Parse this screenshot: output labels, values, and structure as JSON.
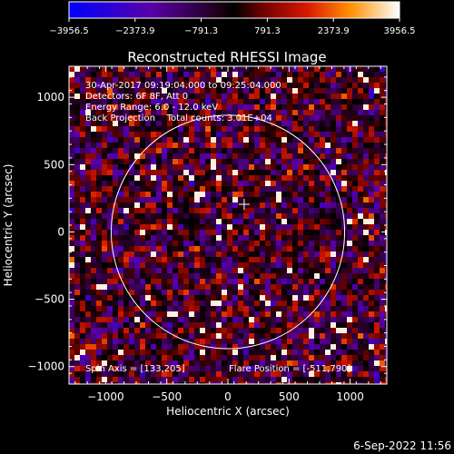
{
  "chart_data": {
    "type": "heatmap",
    "title": "Reconstructed RHESSI Image",
    "xlabel": "Heliocentric X (arcsec)",
    "ylabel": "Heliocentric Y (arcsec)",
    "xlim": [
      -1300,
      1300
    ],
    "ylim": [
      -1130,
      1230
    ],
    "x_ticks": [
      -1000,
      -500,
      0,
      500,
      1000
    ],
    "y_ticks": [
      -1000,
      -500,
      0,
      500,
      1000
    ],
    "colorbar": {
      "range": [
        -3956.5,
        3956.5
      ],
      "tick_values": [
        -3956.5,
        -2373.9,
        -791.3,
        791.3,
        2373.9,
        3956.5
      ],
      "tick_labels": [
        "−3956.5",
        "−2373.9",
        "−791.3",
        "791.3",
        "2373.9",
        "3956.5"
      ]
    },
    "annotations": [
      "30-Apr-2017 09:19:04.000 to 09:25:04.000",
      "Detectors: 6F 8F, Att 0",
      "Energy Range: 6.0 - 12.0 keV",
      "Back Projection    Total counts: 3.01E+04"
    ],
    "spin_axis_label": "Spin Axis = [133,205]",
    "flare_position_label": "Flare Position = [-511,790]",
    "solar_disk": {
      "center": [
        0,
        0
      ],
      "radius_arcsec": 955
    },
    "spin_axis": [
      133,
      205
    ],
    "flare_position": [
      -511,
      790
    ],
    "timestamp": "6-Sep-2022 11:56",
    "colors": {
      "background": "#000000",
      "foreground": "#ffffff"
    }
  }
}
